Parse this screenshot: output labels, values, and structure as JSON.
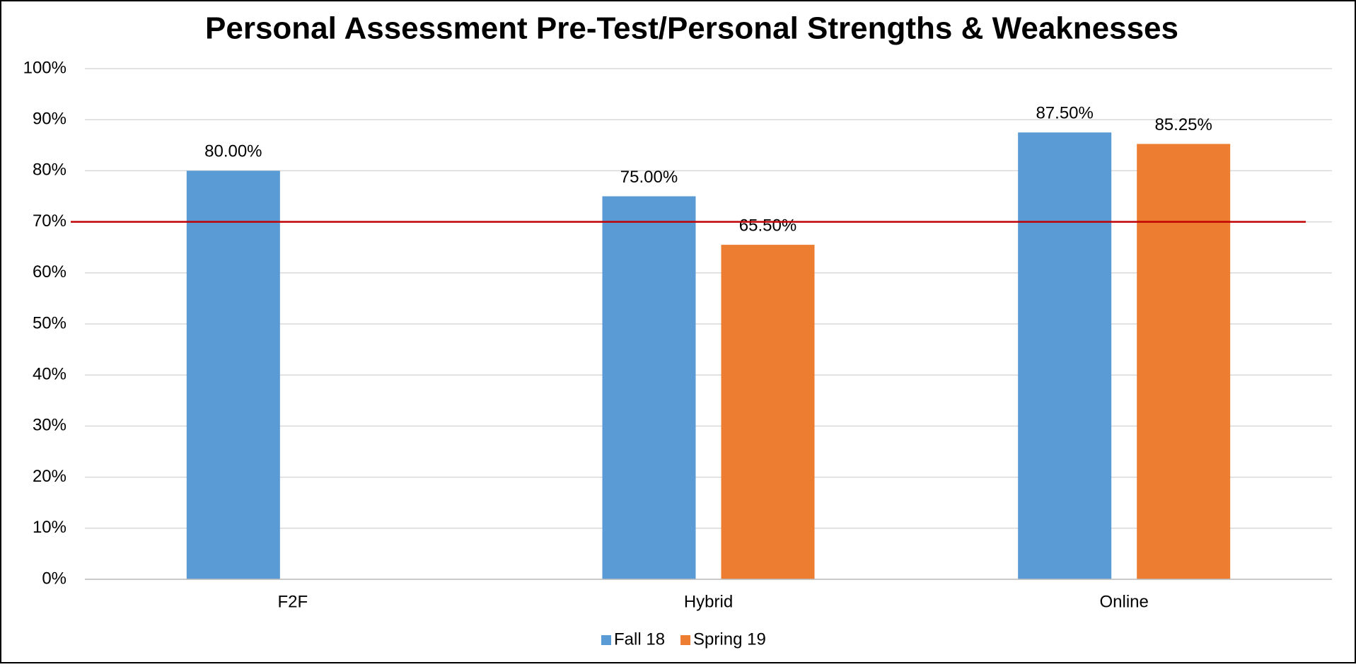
{
  "chart_data": {
    "type": "bar",
    "title": "Personal Assessment Pre-Test/Personal Strengths & Weaknesses",
    "categories": [
      "F2F",
      "Hybrid",
      "Online"
    ],
    "series": [
      {
        "name": "Fall 18",
        "color": "#5b9bd5",
        "values": [
          80,
          75,
          87.5
        ],
        "value_labels": [
          "80.00%",
          "75.00%",
          "87.50%"
        ]
      },
      {
        "name": "Spring 19",
        "color": "#ed7d31",
        "values": [
          null,
          65.5,
          85.25
        ],
        "value_labels": [
          null,
          "65.50%",
          "85.25%"
        ]
      }
    ],
    "ylim": [
      0,
      100
    ],
    "yticks": [
      {
        "value": 0,
        "label": "0%"
      },
      {
        "value": 10,
        "label": "10%"
      },
      {
        "value": 20,
        "label": "20%"
      },
      {
        "value": 30,
        "label": "30%"
      },
      {
        "value": 40,
        "label": "40%"
      },
      {
        "value": 50,
        "label": "50%"
      },
      {
        "value": 60,
        "label": "60%"
      },
      {
        "value": 70,
        "label": "70%"
      },
      {
        "value": 80,
        "label": "80%"
      },
      {
        "value": 90,
        "label": "90%"
      },
      {
        "value": 100,
        "label": "100%"
      }
    ],
    "grid": true,
    "reference_line": {
      "value": 70,
      "color": "#c00000"
    },
    "legend": "bottom"
  }
}
